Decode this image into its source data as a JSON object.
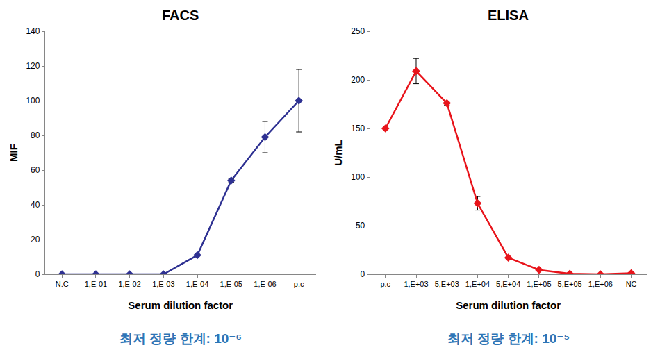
{
  "chart_data": [
    {
      "type": "line",
      "title": "FACS",
      "x_label": "Serum dilution factor",
      "y_label": "MIF",
      "note": "최저 정량 한계: 10⁻⁶",
      "categories": [
        "N.C",
        "1,E-01",
        "1,E-02",
        "1,E-03",
        "1,E-04",
        "1,E-05",
        "1,E-06",
        "p.c"
      ],
      "series": [
        {
          "color": "#2e3192",
          "marker": "diamond",
          "line_style": "solid",
          "values": [
            0,
            0,
            0,
            0,
            11,
            54,
            79,
            100
          ],
          "errors": [
            null,
            null,
            null,
            null,
            null,
            1,
            9,
            18
          ]
        }
      ],
      "ylim": [
        0,
        140
      ],
      "yticks": [
        0,
        20,
        40,
        60,
        80,
        100,
        120,
        140
      ],
      "grid": false
    },
    {
      "type": "line",
      "title": "ELISA",
      "x_label": "Serum dilution factor",
      "y_label": "U/mL",
      "note": "최저 정량 한계: 10⁻⁵",
      "categories": [
        "p.c",
        "1,E+03",
        "5,E+03",
        "1,E+04",
        "5,E+04",
        "1,E+05",
        "5,E+05",
        "1,E+06",
        "NC"
      ],
      "series": [
        {
          "color": "#e8141b",
          "marker": "diamond",
          "line_style": "solid",
          "values": [
            150,
            209,
            176,
            73,
            17,
            4.5,
            0.5,
            0,
            1
          ],
          "errors": [
            null,
            13,
            2,
            7,
            null,
            null,
            null,
            null,
            null
          ]
        }
      ],
      "ylim": [
        0,
        250
      ],
      "yticks": [
        0,
        50,
        100,
        150,
        200,
        250
      ],
      "grid": false
    }
  ]
}
